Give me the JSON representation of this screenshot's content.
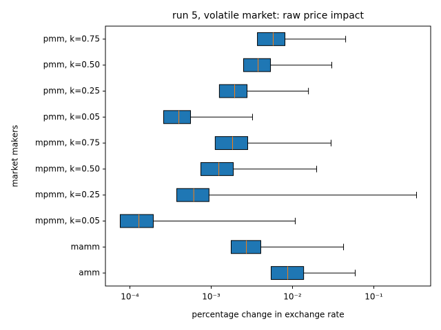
{
  "chart_data": {
    "type": "boxplot",
    "title": "run 5, volatile market: raw price impact",
    "x_label": "percentage change in exchange rate",
    "y_label": "market makers",
    "x_scale": "log",
    "color": "#1f77b4",
    "median_color": "#ff7f0e",
    "categories": [
      "amm",
      "mamm",
      "mpmm, k=0.05",
      "mpmm, k=0.25",
      "mpmm, k=0.50",
      "mpmm, k=0.75",
      "pmm, k=0.05",
      "pmm, k=0.25",
      "pmm, k=0.50",
      "pmm, k=0.75"
    ],
    "boxes": [
      {
        "q1": 0.00546,
        "median": 0.00873,
        "q3": 0.0137,
        "whisker_high": 0.059
      },
      {
        "q1": 0.00176,
        "median": 0.00271,
        "q3": 0.00407,
        "whisker_high": 0.0424
      },
      {
        "q1": 7.6e-05,
        "median": 0.000129,
        "q3": 0.000194,
        "whisker_high": 0.0108
      },
      {
        "q1": 0.000377,
        "median": 0.00061,
        "q3": 0.00094,
        "whisker_high": 0.335
      },
      {
        "q1": 0.000746,
        "median": 0.00124,
        "q3": 0.00187,
        "whisker_high": 0.0198
      },
      {
        "q1": 0.00112,
        "median": 0.00183,
        "q3": 0.00281,
        "whisker_high": 0.0298
      },
      {
        "q1": 0.00026,
        "median": 0.0004,
        "q3": 0.000557,
        "whisker_high": 0.00322
      },
      {
        "q1": 0.00126,
        "median": 0.00194,
        "q3": 0.00276,
        "whisker_high": 0.0157
      },
      {
        "q1": 0.0025,
        "median": 0.00377,
        "q3": 0.00536,
        "whisker_high": 0.0304
      },
      {
        "q1": 0.0037,
        "median": 0.00579,
        "q3": 0.00807,
        "whisker_high": 0.045
      }
    ],
    "xlim": [
      5e-05,
      0.5
    ],
    "xticks": [
      {
        "value": 0.0001,
        "label": "10⁻⁴"
      },
      {
        "value": 0.001,
        "label": "10⁻³"
      },
      {
        "value": 0.01,
        "label": "10⁻²"
      },
      {
        "value": 0.1,
        "label": "10⁻¹"
      }
    ]
  }
}
